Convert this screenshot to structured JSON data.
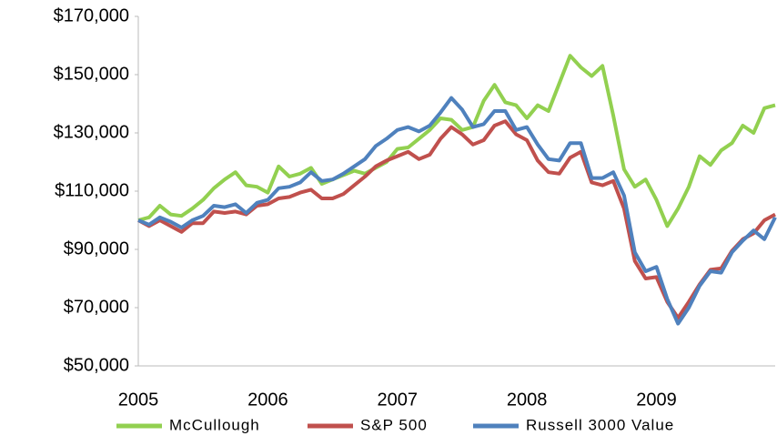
{
  "chart_data": {
    "type": "line",
    "categories": [
      "2005",
      null,
      null,
      null,
      null,
      null,
      null,
      null,
      null,
      null,
      null,
      null,
      "2006",
      null,
      null,
      null,
      null,
      null,
      null,
      null,
      null,
      null,
      null,
      null,
      "2007",
      null,
      null,
      null,
      null,
      null,
      null,
      null,
      null,
      null,
      null,
      null,
      "2008",
      null,
      null,
      null,
      null,
      null,
      null,
      null,
      null,
      null,
      null,
      null,
      "2009",
      null,
      null,
      null,
      null,
      null,
      null,
      null,
      null,
      null,
      null,
      null
    ],
    "series": [
      {
        "name": "McCullough",
        "color": "#92d050",
        "values": [
          100000,
          101000,
          105000,
          102000,
          101500,
          104000,
          107000,
          111000,
          114000,
          116500,
          112000,
          111500,
          109500,
          118500,
          115000,
          116000,
          118000,
          112500,
          114000,
          115500,
          117000,
          116000,
          118000,
          120000,
          124500,
          125000,
          128000,
          131000,
          135000,
          134500,
          131000,
          132000,
          141000,
          146500,
          140500,
          139500,
          135000,
          139500,
          137500,
          147000,
          156500,
          152500,
          149500,
          153000,
          136000,
          117500,
          111500,
          114000,
          107000,
          98000,
          104000,
          111500,
          122000,
          119000,
          124000,
          126500,
          132500,
          130000,
          138500,
          139500
        ]
      },
      {
        "name": "S&P 500",
        "color": "#c0504d",
        "values": [
          100000,
          98000,
          100000,
          98000,
          96000,
          99000,
          99000,
          103000,
          102500,
          103000,
          102000,
          105000,
          105500,
          107500,
          108000,
          109500,
          110500,
          107500,
          107500,
          109000,
          112000,
          115000,
          118500,
          120500,
          122000,
          123500,
          121000,
          122500,
          128000,
          132000,
          129500,
          126000,
          127500,
          132500,
          134000,
          129500,
          127500,
          120500,
          116500,
          116000,
          121500,
          123500,
          113000,
          112000,
          113500,
          104000,
          86000,
          80000,
          80500,
          72000,
          66500,
          72000,
          78000,
          83000,
          83500,
          89500,
          93500,
          95500,
          100000,
          102000
        ]
      },
      {
        "name": "Russell 3000 Value",
        "color": "#4f81bd",
        "values": [
          100000,
          98500,
          101000,
          99500,
          97500,
          100000,
          101500,
          105000,
          104500,
          105500,
          102500,
          106000,
          107000,
          111000,
          111500,
          113000,
          116500,
          113500,
          114000,
          116000,
          118500,
          121000,
          125500,
          128000,
          131000,
          132000,
          130500,
          132500,
          137000,
          142000,
          138000,
          132000,
          133000,
          137500,
          137500,
          131000,
          132000,
          126000,
          121000,
          120500,
          126500,
          126500,
          114500,
          114500,
          116500,
          108500,
          89000,
          82500,
          84000,
          73000,
          64500,
          70000,
          77500,
          82500,
          82000,
          89000,
          93000,
          96500,
          93500,
          101000
        ]
      }
    ],
    "ylim": [
      50000,
      170000
    ],
    "yticks": [
      {
        "value": 50000,
        "label": "$50,000"
      },
      {
        "value": 70000,
        "label": "$70,000"
      },
      {
        "value": 90000,
        "label": "$90,000"
      },
      {
        "value": 110000,
        "label": "$110,000"
      },
      {
        "value": 130000,
        "label": "$130,000"
      },
      {
        "value": 150000,
        "label": "$150,000"
      },
      {
        "value": 170000,
        "label": "$170,000"
      }
    ],
    "grid": false,
    "legend": "bottom"
  }
}
